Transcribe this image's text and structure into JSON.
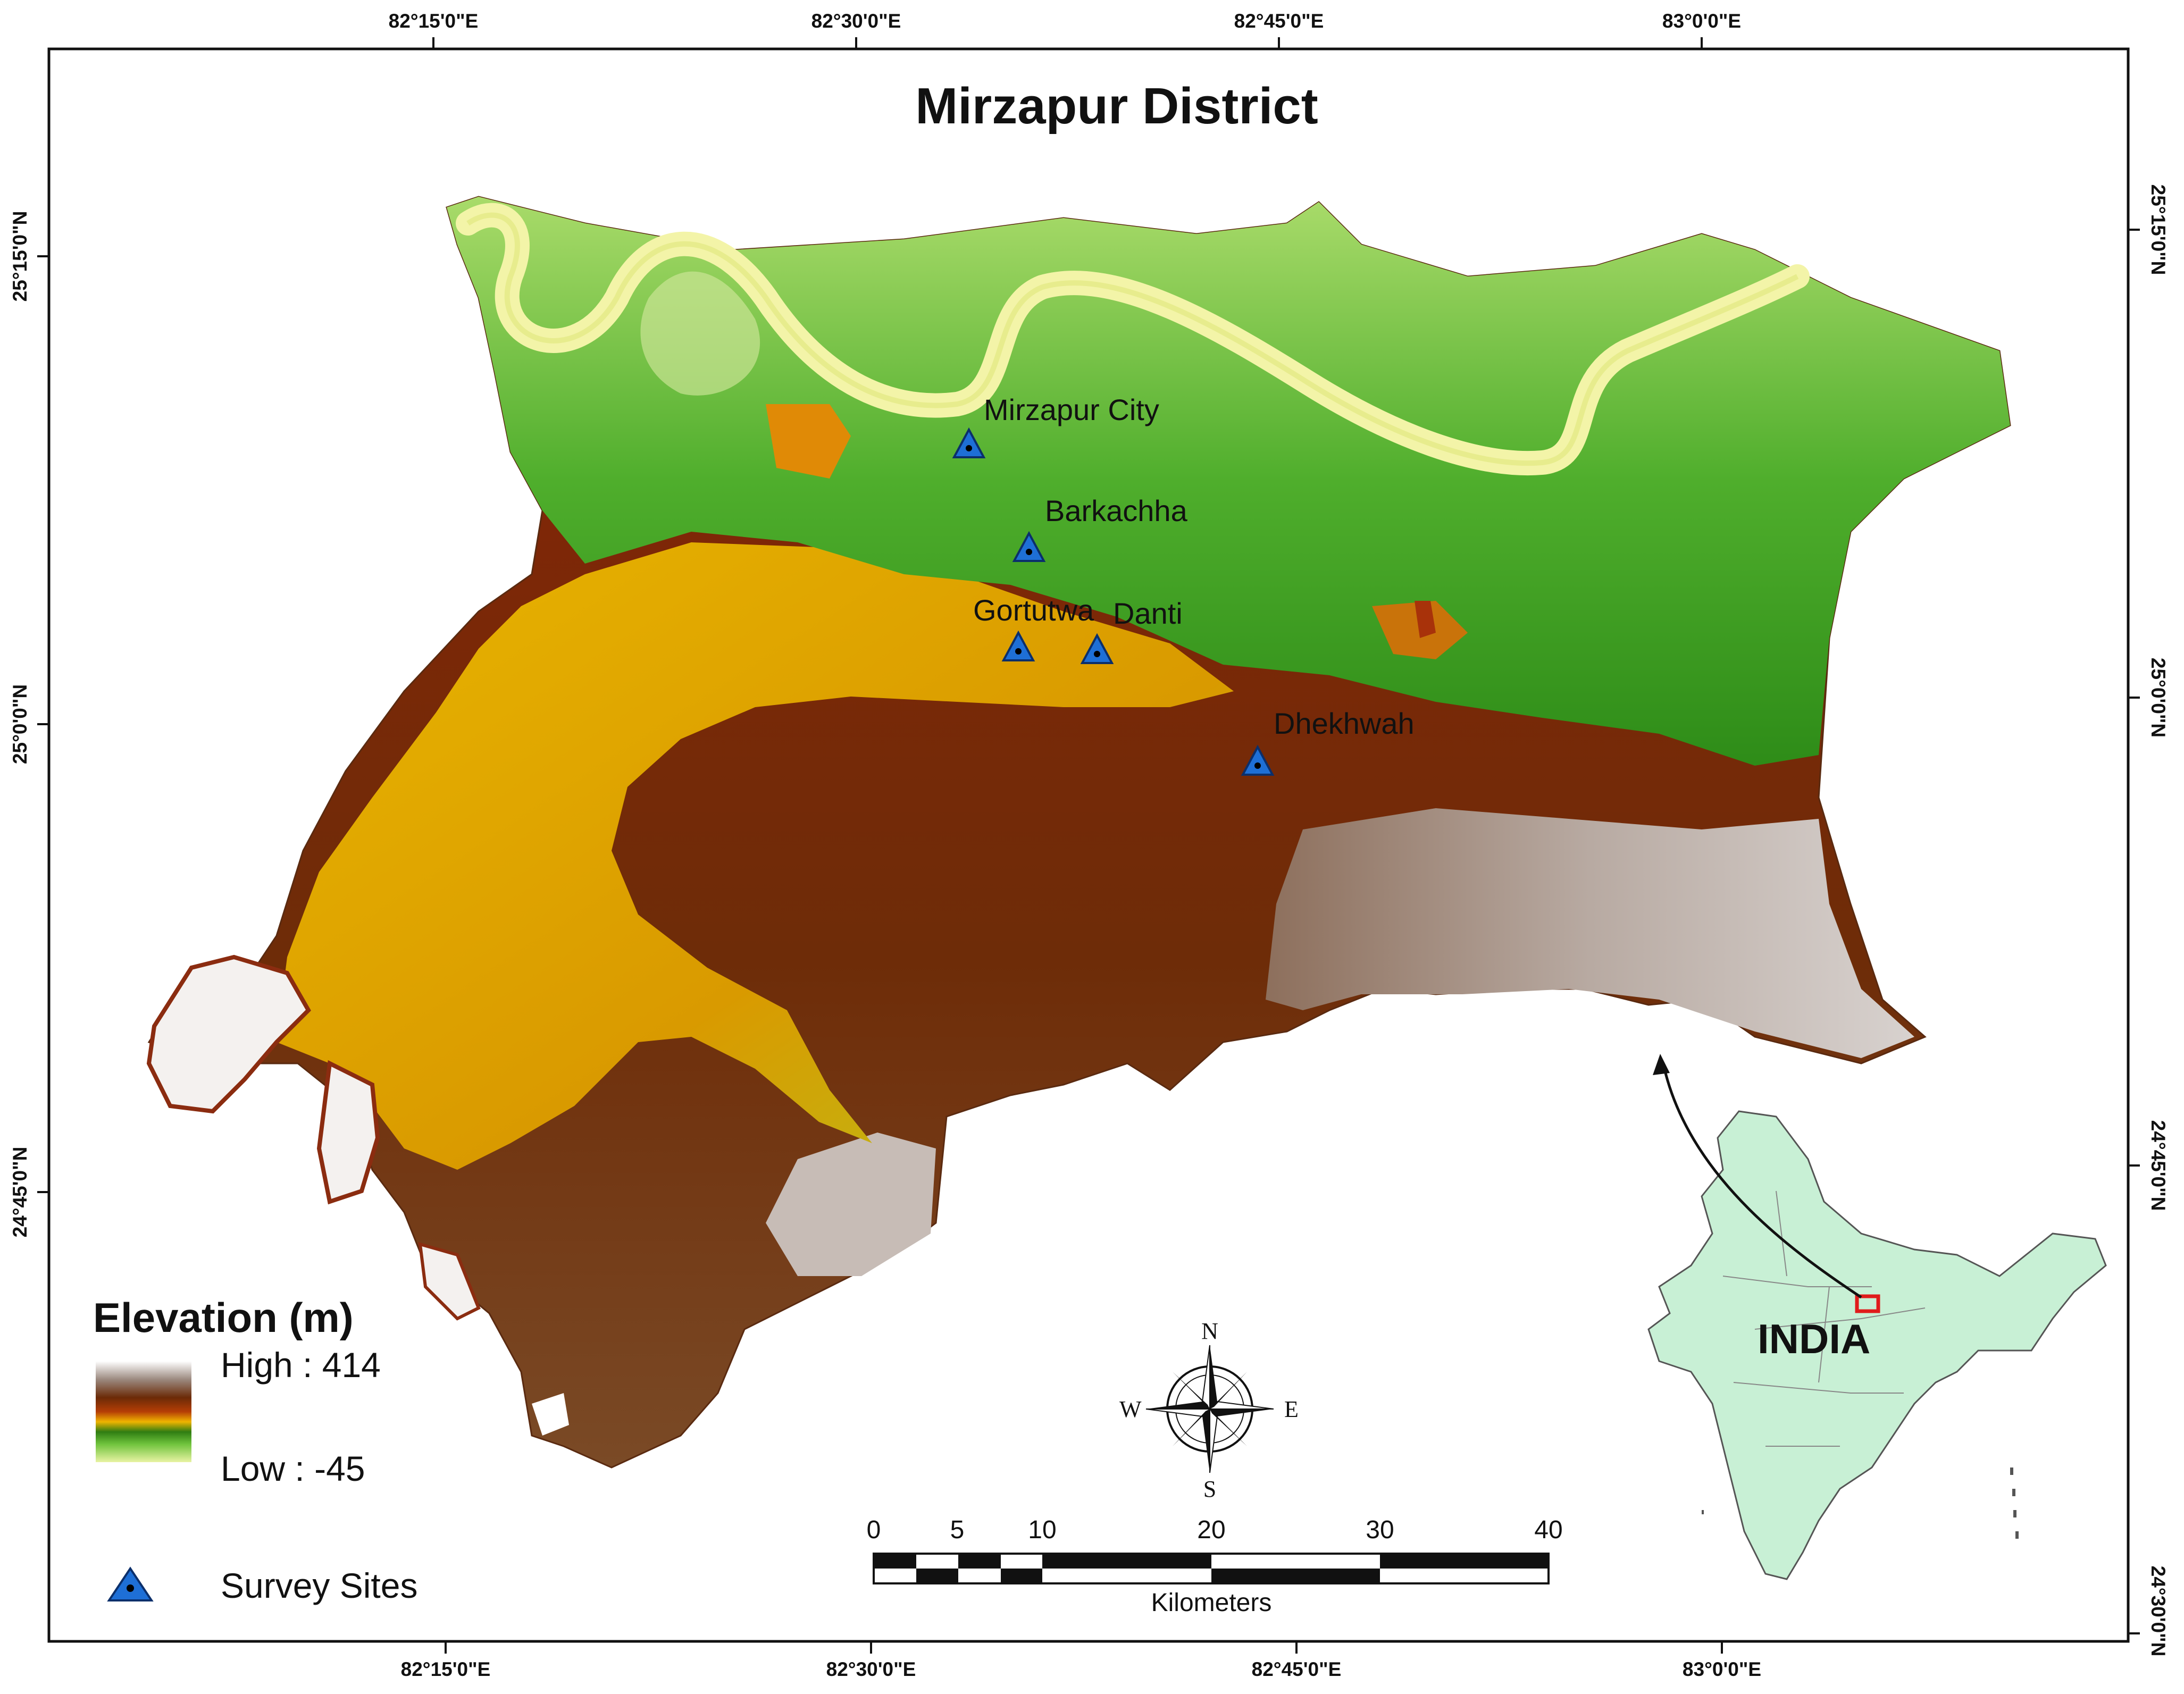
{
  "title": "Mirzapur District",
  "graticule": {
    "top_labels": [
      "82°15'0\"E",
      "82°30'0\"E",
      "82°45'0\"E",
      "83°0'0\"E"
    ],
    "bottom_labels": [
      "82°15'0\"E",
      "82°30'0\"E",
      "82°45'0\"E",
      "83°0'0\"E"
    ],
    "left_labels": [
      "25°15'0\"N",
      "25°0'0\"N",
      "24°45'0\"N"
    ],
    "right_labels": [
      "25°15'0\"N",
      "25°0'0\"N",
      "24°45'0\"N",
      "24°30'0\"N"
    ]
  },
  "survey_sites": [
    {
      "name": "Mirzapur City"
    },
    {
      "name": "Barkachha"
    },
    {
      "name": "Gortutwa"
    },
    {
      "name": "Danti"
    },
    {
      "name": "Dhekhwah"
    }
  ],
  "legend": {
    "title": "Elevation (m)",
    "high_label": "High : 414",
    "low_label": "Low : -45",
    "survey_sites_label": "Survey Sites",
    "ramp_colors": [
      "#ffffff",
      "#9c8a80",
      "#6b2a07",
      "#b53e06",
      "#f0b400",
      "#2f7d12",
      "#6fc33c",
      "#e9f3a4"
    ]
  },
  "scale_bar": {
    "labels": [
      "0",
      "5",
      "10",
      "20",
      "30",
      "40"
    ],
    "unit": "Kilometers"
  },
  "compass": {
    "n": "N",
    "s": "S",
    "e": "E",
    "w": "W"
  },
  "inset": {
    "label": "INDIA"
  },
  "colors": {
    "river": "#f3f4a8",
    "marker": "#1e6fd6",
    "inset_fill": "#c8f0d5",
    "locator": "#e01b1b"
  }
}
